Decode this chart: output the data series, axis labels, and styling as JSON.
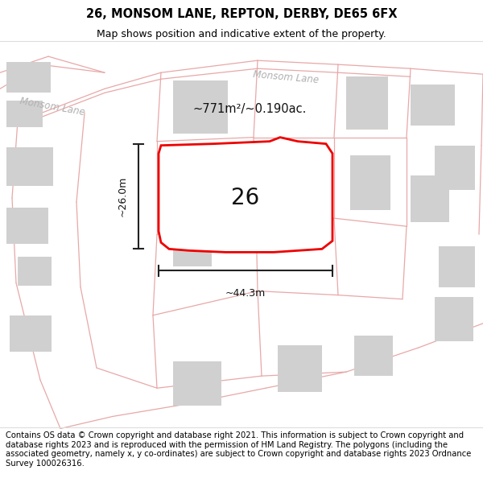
{
  "title": "26, MONSOM LANE, REPTON, DERBY, DE65 6FX",
  "subtitle": "Map shows position and indicative extent of the property.",
  "footer": "Contains OS data © Crown copyright and database right 2021. This information is subject to Crown copyright and database rights 2023 and is reproduced with the permission of HM Land Registry. The polygons (including the associated geometry, namely x, y co-ordinates) are subject to Crown copyright and database rights 2023 Ordnance Survey 100026316.",
  "bg_color": "#ffffff",
  "map_bg": "#faf3f3",
  "road_color": "#e8a8a8",
  "building_color": "#d0d0d0",
  "highlight_color": "#ee0000",
  "highlight_fill": "#ffffff",
  "dim_color": "#222222",
  "area_text": "~771m²/~0.190ac.",
  "label_26": "26",
  "dim_width": "~44.3m",
  "dim_height": "~26.0m",
  "road_label_1": "Monsom Lane",
  "road_label_2": "Monsom Lane",
  "title_fontsize": 10.5,
  "subtitle_fontsize": 9,
  "footer_fontsize": 7.2
}
